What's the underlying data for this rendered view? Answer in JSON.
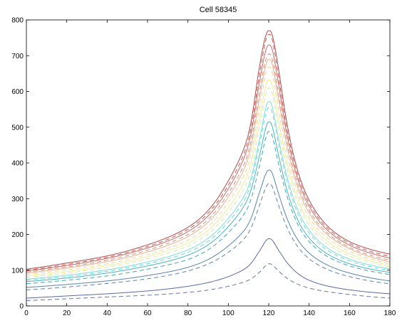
{
  "chart_data": {
    "type": "line",
    "title": "Cell 58345",
    "xlabel": "",
    "ylabel": "",
    "xlim": [
      0,
      180
    ],
    "ylim": [
      0,
      800
    ],
    "xticks": [
      0,
      20,
      40,
      60,
      80,
      100,
      120,
      140,
      160,
      180
    ],
    "yticks": [
      0,
      100,
      200,
      300,
      400,
      500,
      600,
      700,
      800
    ],
    "grid": false,
    "legend": "none",
    "x_sample": [
      0,
      20,
      40,
      60,
      80,
      100,
      110,
      115,
      120,
      125,
      130,
      140,
      160,
      180
    ],
    "series": [
      {
        "style": "dashed",
        "color": "#6a74a6",
        "peak_x": 120.5,
        "values": [
          15,
          20,
          25,
          30,
          38,
          55,
          72,
          92,
          118,
          97,
          74,
          50,
          32,
          22
        ]
      },
      {
        "style": "solid",
        "color": "#5a6aa0",
        "peak_x": 120.5,
        "values": [
          22,
          28,
          34,
          42,
          55,
          82,
          112,
          150,
          188,
          155,
          115,
          72,
          45,
          34
        ]
      },
      {
        "style": "dashed",
        "color": "#5d82ad",
        "peak_x": 120.5,
        "values": [
          45,
          53,
          63,
          76,
          98,
          150,
          205,
          275,
          342,
          280,
          208,
          132,
          82,
          62
        ]
      },
      {
        "style": "solid",
        "color": "#5a85a8",
        "peak_x": 120.5,
        "values": [
          52,
          60,
          70,
          85,
          108,
          168,
          230,
          310,
          380,
          312,
          232,
          148,
          92,
          70
        ]
      },
      {
        "style": "dashed",
        "color": "#3fa7b0",
        "peak_x": 120.5,
        "values": [
          62,
          72,
          84,
          103,
          130,
          205,
          280,
          382,
          488,
          395,
          290,
          180,
          112,
          88
        ]
      },
      {
        "style": "solid",
        "color": "#47b5c0",
        "peak_x": 120.5,
        "values": [
          68,
          78,
          92,
          112,
          142,
          222,
          305,
          410,
          515,
          418,
          306,
          190,
          118,
          94
        ]
      },
      {
        "style": "dashed",
        "color": "#6fd6d2",
        "peak_x": 120.5,
        "values": [
          72,
          82,
          97,
          118,
          150,
          235,
          322,
          440,
          555,
          450,
          330,
          204,
          126,
          100
        ]
      },
      {
        "style": "solid",
        "color": "#7fdcd6",
        "peak_x": 120.5,
        "values": [
          75,
          86,
          101,
          123,
          157,
          245,
          335,
          455,
          572,
          465,
          342,
          212,
          131,
          104
        ]
      },
      {
        "style": "dashed",
        "color": "#d6eaa6",
        "peak_x": 120.5,
        "values": [
          80,
          92,
          108,
          132,
          168,
          262,
          358,
          488,
          610,
          495,
          365,
          226,
          140,
          110
        ]
      },
      {
        "style": "solid",
        "color": "#f0ec9a",
        "peak_x": 120.5,
        "values": [
          84,
          96,
          113,
          138,
          176,
          275,
          378,
          512,
          632,
          515,
          382,
          236,
          146,
          114
        ]
      },
      {
        "style": "dashed",
        "color": "#f2d49a",
        "peak_x": 120.5,
        "values": [
          88,
          101,
          118,
          144,
          184,
          290,
          398,
          540,
          668,
          545,
          402,
          248,
          153,
          118
        ]
      },
      {
        "style": "solid",
        "color": "#e8b08c",
        "peak_x": 120.5,
        "values": [
          92,
          106,
          124,
          151,
          194,
          305,
          418,
          567,
          690,
          573,
          422,
          260,
          160,
          123
        ]
      },
      {
        "style": "dashed",
        "color": "#d98e7e",
        "peak_x": 120.5,
        "values": [
          95,
          109,
          128,
          156,
          200,
          315,
          432,
          585,
          705,
          590,
          435,
          268,
          164,
          128
        ]
      },
      {
        "style": "solid",
        "color": "#c96a62",
        "peak_x": 120.5,
        "values": [
          98,
          113,
          133,
          162,
          208,
          328,
          452,
          612,
          730,
          616,
          452,
          279,
          170,
          134
        ]
      },
      {
        "style": "dashed",
        "color": "#c05a55",
        "peak_x": 120.5,
        "values": [
          100,
          116,
          136,
          166,
          214,
          338,
          466,
          632,
          760,
          636,
          466,
          287,
          175,
          139
        ]
      },
      {
        "style": "solid",
        "color": "#b64846",
        "peak_x": 120.5,
        "values": [
          103,
          120,
          140,
          171,
          220,
          350,
          482,
          655,
          770,
          658,
          482,
          296,
          180,
          145
        ]
      }
    ]
  }
}
